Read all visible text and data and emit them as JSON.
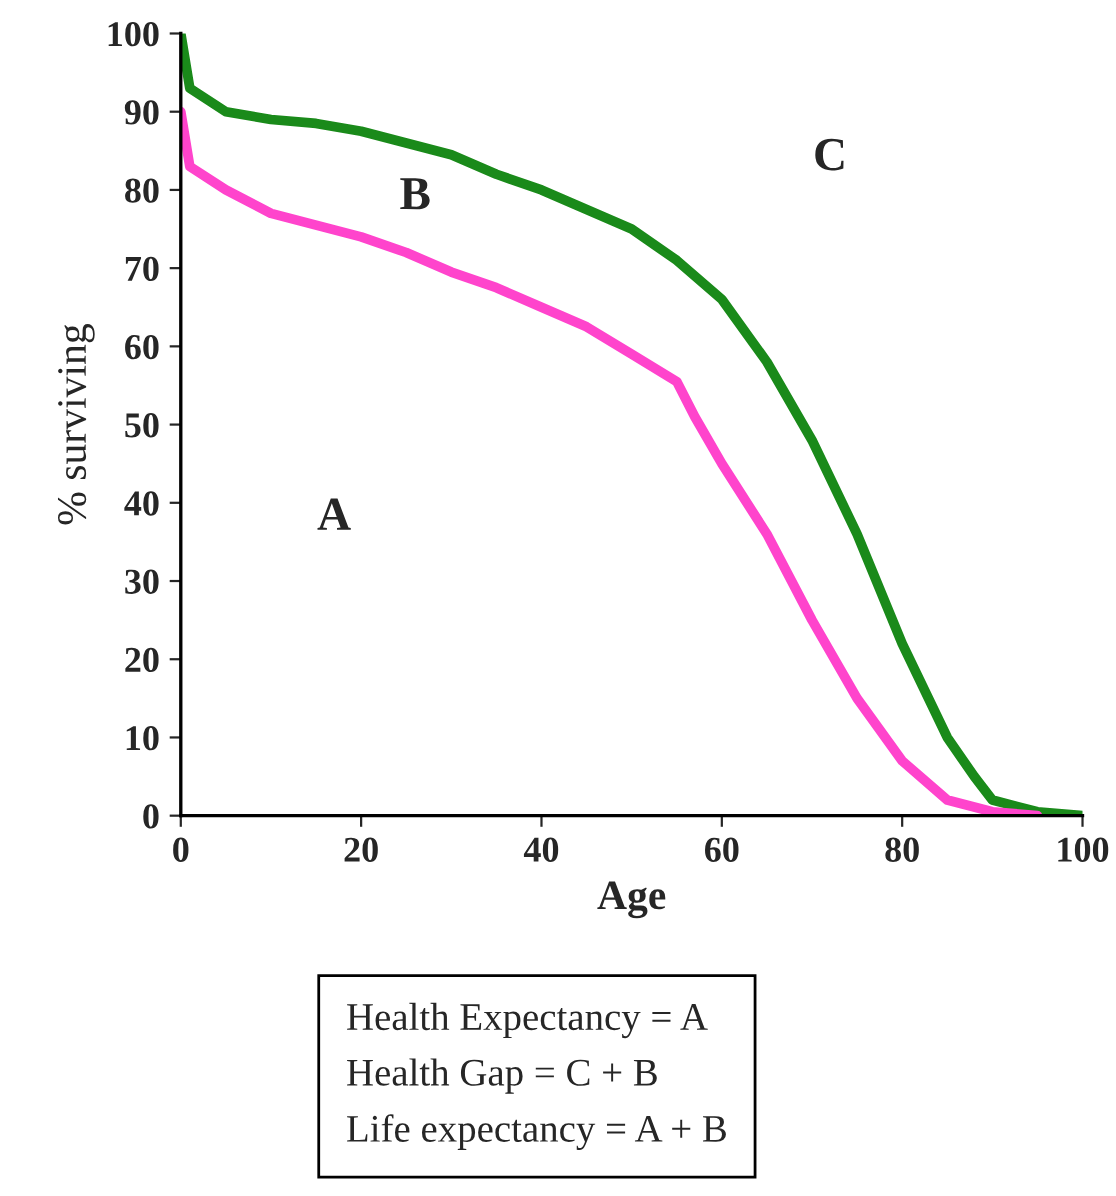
{
  "chart_data": {
    "type": "line",
    "xlabel": "Age",
    "ylabel": "% surviving",
    "series": [
      {
        "color": "#1a8a1a",
        "x": [
          0,
          1,
          5,
          10,
          15,
          20,
          25,
          30,
          35,
          40,
          45,
          50,
          55,
          60,
          65,
          70,
          75,
          80,
          85,
          88,
          90,
          95,
          100
        ],
        "values": [
          100,
          93,
          90,
          89,
          88.5,
          87.5,
          86,
          84.5,
          82,
          80,
          77.5,
          75,
          71,
          66,
          58,
          48,
          36,
          22,
          10,
          5,
          2,
          0.5,
          0
        ]
      },
      {
        "color": "#ff44cc",
        "x": [
          0,
          1,
          5,
          10,
          15,
          20,
          25,
          30,
          35,
          40,
          45,
          50,
          55,
          57,
          60,
          65,
          70,
          75,
          80,
          85,
          90,
          95
        ],
        "values": [
          90,
          83,
          80,
          77,
          75.5,
          74,
          72,
          69.5,
          67.5,
          65,
          62.5,
          59,
          55.5,
          51,
          45,
          36,
          25,
          15,
          7,
          2,
          0.5,
          0
        ]
      }
    ],
    "xlim": [
      0,
      100
    ],
    "xticks": [
      0,
      20,
      40,
      60,
      80,
      100
    ],
    "ylim": [
      0,
      100
    ],
    "yticks": [
      0,
      10,
      20,
      30,
      40,
      50,
      60,
      70,
      80,
      90,
      100
    ],
    "grid": false,
    "legend": false,
    "marker": "none",
    "line_style": "solid",
    "annotations": [
      "A",
      "B",
      "C",
      "Health Expectancy = A\nHealth Gap = C + B\nLife expectancy = A + B"
    ]
  }
}
